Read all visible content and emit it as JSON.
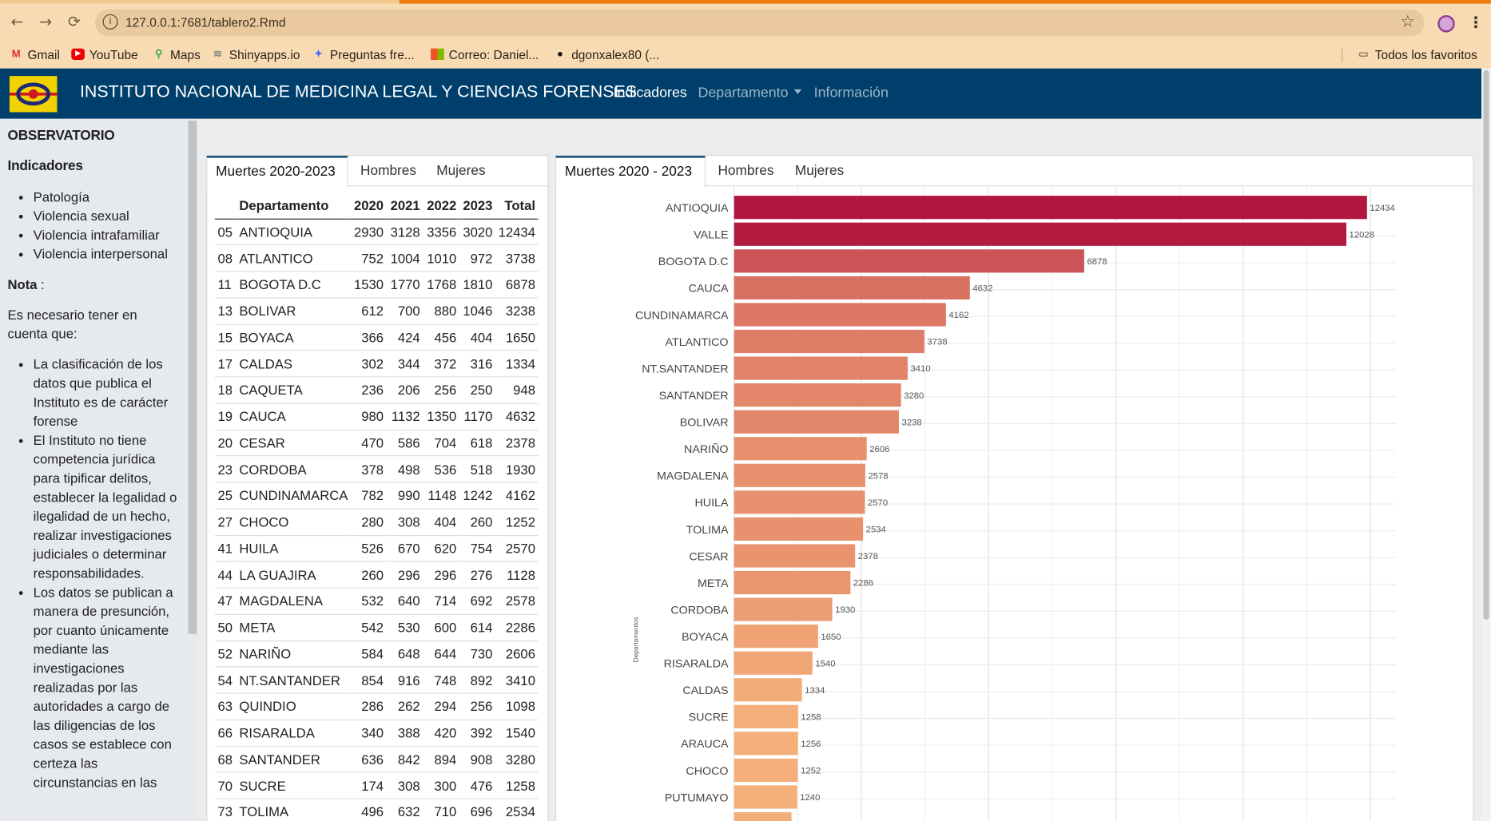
{
  "browser": {
    "url": "127.0.0.1:7681/tablero2.Rmd",
    "bookmarks": [
      "Gmail",
      "YouTube",
      "Maps",
      "Shinyapps.io",
      "Preguntas fre...",
      "Correo: Daniel...",
      "dgonxalex80 (...",
      "Todos los favoritos"
    ]
  },
  "navbar": {
    "title": "INSTITUTO NACIONAL DE MEDICINA LEGAL Y CIENCIAS FORENSES",
    "links": [
      "Indicadores",
      "Departamento",
      "Información"
    ]
  },
  "sidebar": {
    "heading": "OBSERVATORIO",
    "subheading": "Indicadores",
    "indicators": [
      "Patología",
      "Violencia sexual",
      "Violencia intrafamiliar",
      "Violencia interpersonal"
    ],
    "note_label": "Nota",
    "note_suffix": " :",
    "note_intro": "Es necesario tener en cuenta que:",
    "notes": [
      "La clasificación de los datos que publica el Instituto es de carácter forense",
      "El Instituto no tiene competencia jurídica para tipificar delitos, establecer la legalidad o ilegalidad de un hecho, realizar investigaciones judiciales o determinar responsabilidades.",
      "Los datos se publican a manera de presunción, por cuanto únicamente mediante las investigaciones realizadas por las autoridades a cargo de las diligencias de los casos se establece con certeza las circunstancias en las"
    ]
  },
  "table_panel": {
    "tabs": [
      "Muertes 2020-2023",
      "Hombres",
      "Mujeres"
    ],
    "columns": [
      "",
      "Departamento",
      "2020",
      "2021",
      "2022",
      "2023",
      "Total"
    ],
    "rows": [
      [
        "05",
        "ANTIOQUIA",
        "2930",
        "3128",
        "3356",
        "3020",
        "12434"
      ],
      [
        "08",
        "ATLANTICO",
        "752",
        "1004",
        "1010",
        "972",
        "3738"
      ],
      [
        "11",
        "BOGOTA D.C",
        "1530",
        "1770",
        "1768",
        "1810",
        "6878"
      ],
      [
        "13",
        "BOLIVAR",
        "612",
        "700",
        "880",
        "1046",
        "3238"
      ],
      [
        "15",
        "BOYACA",
        "366",
        "424",
        "456",
        "404",
        "1650"
      ],
      [
        "17",
        "CALDAS",
        "302",
        "344",
        "372",
        "316",
        "1334"
      ],
      [
        "18",
        "CAQUETA",
        "236",
        "206",
        "256",
        "250",
        "948"
      ],
      [
        "19",
        "CAUCA",
        "980",
        "1132",
        "1350",
        "1170",
        "4632"
      ],
      [
        "20",
        "CESAR",
        "470",
        "586",
        "704",
        "618",
        "2378"
      ],
      [
        "23",
        "CORDOBA",
        "378",
        "498",
        "536",
        "518",
        "1930"
      ],
      [
        "25",
        "CUNDINAMARCA",
        "782",
        "990",
        "1148",
        "1242",
        "4162"
      ],
      [
        "27",
        "CHOCO",
        "280",
        "308",
        "404",
        "260",
        "1252"
      ],
      [
        "41",
        "HUILA",
        "526",
        "670",
        "620",
        "754",
        "2570"
      ],
      [
        "44",
        "LA GUAJIRA",
        "260",
        "296",
        "296",
        "276",
        "1128"
      ],
      [
        "47",
        "MAGDALENA",
        "532",
        "640",
        "714",
        "692",
        "2578"
      ],
      [
        "50",
        "META",
        "542",
        "530",
        "600",
        "614",
        "2286"
      ],
      [
        "52",
        "NARIÑO",
        "584",
        "648",
        "644",
        "730",
        "2606"
      ],
      [
        "54",
        "NT.SANTANDER",
        "854",
        "916",
        "748",
        "892",
        "3410"
      ],
      [
        "63",
        "QUINDIO",
        "286",
        "262",
        "294",
        "256",
        "1098"
      ],
      [
        "66",
        "RISARALDA",
        "340",
        "388",
        "420",
        "392",
        "1540"
      ],
      [
        "68",
        "SANTANDER",
        "636",
        "842",
        "894",
        "908",
        "3280"
      ],
      [
        "70",
        "SUCRE",
        "174",
        "308",
        "300",
        "476",
        "1258"
      ],
      [
        "73",
        "TOLIMA",
        "496",
        "632",
        "710",
        "696",
        "2534"
      ]
    ]
  },
  "chart_panel": {
    "tabs": [
      "Muertes 2020 - 2023",
      "Hombres",
      "Mujeres"
    ]
  },
  "chart_data": {
    "type": "bar",
    "orientation": "horizontal",
    "ylabel": "Departamentos",
    "xlim": [
      0,
      13000
    ],
    "grid": true,
    "color_low": "#f5b07a",
    "color_high": "#b0163e",
    "categories": [
      "ANTIOQUIA",
      "VALLE",
      "BOGOTA D.C",
      "CAUCA",
      "CUNDINAMARCA",
      "ATLANTICO",
      "NT.SANTANDER",
      "SANTANDER",
      "BOLIVAR",
      "NARIÑO",
      "MAGDALENA",
      "HUILA",
      "TOLIMA",
      "CESAR",
      "META",
      "CORDOBA",
      "BOYACA",
      "RISARALDA",
      "CALDAS",
      "SUCRE",
      "ARAUCA",
      "CHOCO",
      "PUTUMAYO"
    ],
    "values": [
      12434,
      12028,
      6878,
      4632,
      4162,
      3738,
      3410,
      3280,
      3238,
      2606,
      2578,
      2570,
      2534,
      2378,
      2286,
      1930,
      1650,
      1540,
      1334,
      1258,
      1256,
      1252,
      1240
    ]
  }
}
